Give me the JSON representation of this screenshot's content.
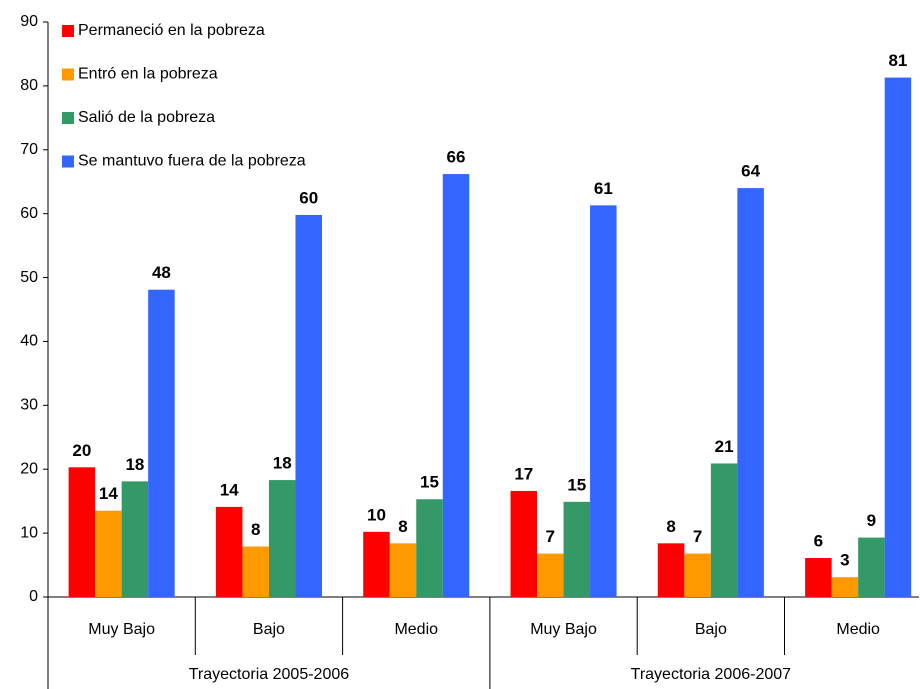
{
  "chart_data": {
    "type": "bar",
    "categories": [
      "Muy Bajo",
      "Bajo",
      "Medio",
      "Muy Bajo",
      "Bajo",
      "Medio"
    ],
    "groups": [
      "Trayectoria 2005-2006",
      "Trayectoria 2006-2007"
    ],
    "series": [
      {
        "name": "Permaneció en la pobreza",
        "color": "#ff0000",
        "values": [
          20.3,
          14.1,
          10.2,
          16.6,
          8.4,
          6.1
        ],
        "value_labels": [
          "20",
          "14",
          "10",
          "17",
          "8",
          "6"
        ]
      },
      {
        "name": "Entró en la pobreza",
        "color": "#ff9900",
        "values": [
          13.5,
          7.9,
          8.4,
          6.8,
          6.8,
          3.1
        ],
        "value_labels": [
          "14",
          "8",
          "8",
          "7",
          "7",
          "3"
        ]
      },
      {
        "name": "Salió de la pobreza",
        "color": "#339966",
        "values": [
          18.1,
          18.3,
          15.3,
          14.9,
          20.9,
          9.3
        ],
        "value_labels": [
          "18",
          "18",
          "15",
          "15",
          "21",
          "9"
        ]
      },
      {
        "name": "Se mantuvo fuera de la pobreza",
        "color": "#3366ff",
        "values": [
          48.1,
          59.8,
          66.2,
          61.3,
          64.0,
          81.3
        ],
        "value_labels": [
          "48",
          "60",
          "66",
          "61",
          "64",
          "81"
        ]
      }
    ],
    "ylim": [
      0,
      90
    ],
    "yticks": [
      0,
      10,
      20,
      30,
      40,
      50,
      60,
      70,
      80,
      90
    ],
    "legend": "top-left"
  }
}
